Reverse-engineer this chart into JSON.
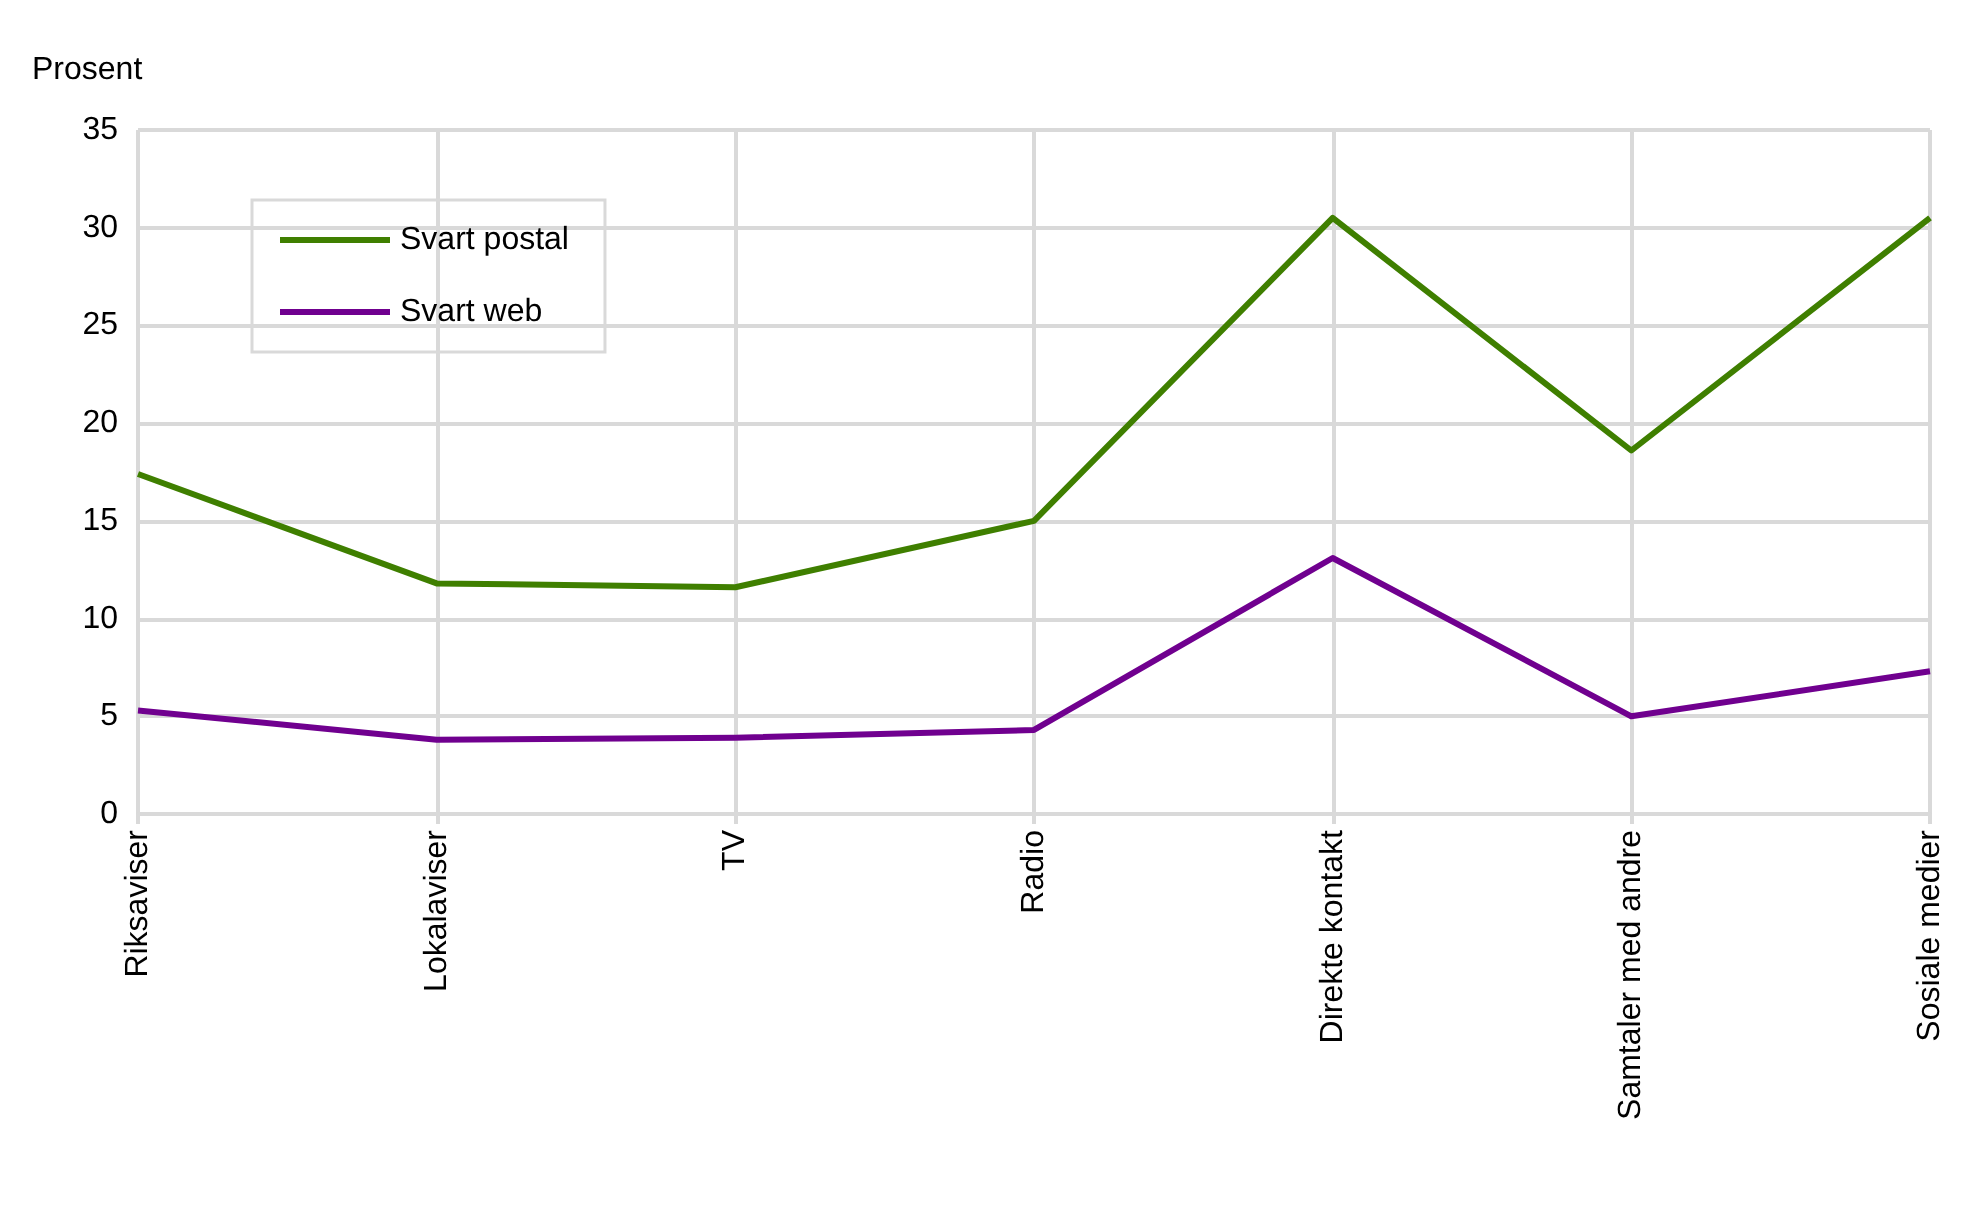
{
  "chart_data": {
    "type": "line",
    "ylabel": "Prosent",
    "categories": [
      "Riksaviser",
      "Lokalaviser",
      "TV",
      "Radio",
      "Direkte kontakt",
      "Samtaler med andre",
      "Sosiale medier"
    ],
    "series": [
      {
        "name": "Svart postal",
        "color": "#3f7f00",
        "values": [
          17.4,
          11.8,
          11.6,
          15.0,
          30.5,
          18.6,
          30.5
        ]
      },
      {
        "name": "Svart web",
        "color": "#70008f",
        "values": [
          5.3,
          3.8,
          3.9,
          4.3,
          13.1,
          5.0,
          7.3
        ]
      }
    ],
    "ylim": [
      0,
      35
    ],
    "yticks": [
      0,
      5,
      10,
      15,
      20,
      25,
      30,
      35
    ],
    "grid": true,
    "legend": "top left",
    "marker": "none",
    "line_style": "solid"
  }
}
